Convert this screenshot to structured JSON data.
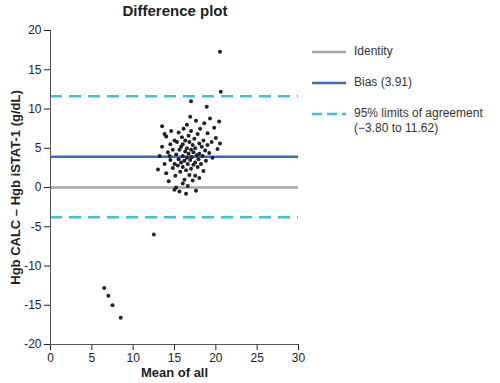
{
  "chart_data": {
    "type": "scatter",
    "title": "Difference plot",
    "x_label": "Mean of all",
    "y_label": "Hgb CALC – Hgb iSTAT-1 (g/dL)",
    "xlim": [
      0,
      30
    ],
    "ylim": [
      -20,
      20
    ],
    "xticks": [
      0,
      5,
      10,
      15,
      20,
      25,
      30
    ],
    "yticks": [
      -20,
      -15,
      -10,
      -5,
      0,
      5,
      10,
      15,
      20
    ],
    "grid": false,
    "legend": "right",
    "color": "#222222",
    "marker": "circle",
    "x": [
      13,
      13.2,
      13.5,
      13.5,
      13.8,
      14,
      14,
      14.2,
      14.3,
      14.5,
      14.5,
      14.6,
      14.8,
      14.8,
      15,
      15,
      15,
      15.1,
      15.2,
      15.3,
      15.4,
      15.5,
      15.5,
      15.6,
      15.6,
      15.7,
      15.8,
      15.8,
      15.9,
      16,
      16,
      16,
      16,
      16.1,
      16.2,
      16.2,
      16.3,
      16.3,
      16.4,
      16.5,
      16.5,
      16.5,
      16.6,
      16.6,
      16.7,
      16.7,
      16.8,
      16.8,
      16.9,
      17,
      17,
      17,
      17,
      17.1,
      17.2,
      17.2,
      17.3,
      17.3,
      17.4,
      17.5,
      17.5,
      17.5,
      17.6,
      17.7,
      17.8,
      17.8,
      17.9,
      18,
      18,
      18,
      18.1,
      18.2,
      18.3,
      18.4,
      18.5,
      18.5,
      18.6,
      18.7,
      18.8,
      19,
      19,
      19.2,
      19.3,
      19.5,
      19.6,
      19.8,
      20,
      20.2,
      20.4,
      20.5,
      20.5,
      20.6,
      16.4,
      15.2,
      17.6,
      12.5,
      14.4,
      13.8,
      16.9,
      18.9,
      6.5,
      7,
      7.5,
      8.5
    ],
    "values": [
      2.3,
      4,
      5.2,
      7.8,
      3,
      1.8,
      6.5,
      4.5,
      0.8,
      3.5,
      5.5,
      7.2,
      2.5,
      4.8,
      3,
      6,
      -0.3,
      1.5,
      4.2,
      5.8,
      2.8,
      3.6,
      7,
      -0.5,
      4.8,
      2,
      5.2,
      3.2,
      6.4,
      0.5,
      2.6,
      4,
      5.5,
      7.5,
      3.4,
      1,
      4.6,
      6,
      2.2,
      3.8,
      5,
      8,
      0.2,
      3,
      4.3,
      6.6,
      1.6,
      5.8,
      3.5,
      4.8,
      2.4,
      11,
      7.2,
      3.9,
      0.9,
      5.4,
      2.9,
      4.5,
      6.2,
      3.2,
      5,
      1.5,
      8.5,
      4.1,
      2.6,
      6.8,
      3.6,
      5.6,
      4.3,
      1.2,
      7.5,
      3,
      5.2,
      4,
      6,
      2.1,
      8.2,
      4.7,
      3.4,
      5.4,
      6.9,
      4.4,
      8.8,
      5.8,
      3.8,
      7.6,
      6.3,
      4.9,
      8.4,
      5.6,
      17.3,
      12.2,
      -0.8,
      0,
      -0.4,
      -6,
      4,
      6.8,
      9,
      10.3,
      -12.8,
      -13.8,
      -15,
      -16.6
    ],
    "reference_lines": [
      {
        "name": "Identity",
        "values": [
          0
        ],
        "color": "#a6a6a6",
        "line_style": "solid"
      },
      {
        "name": "Bias (3.91)",
        "values": [
          3.91
        ],
        "color": "#3a68c4",
        "line_style": "solid"
      },
      {
        "name": "95% limits of agreement (−3.80 to 11.62)",
        "values": [
          -3.8,
          11.62
        ],
        "color": "#3fc4cc",
        "line_style": "dashed"
      }
    ]
  }
}
